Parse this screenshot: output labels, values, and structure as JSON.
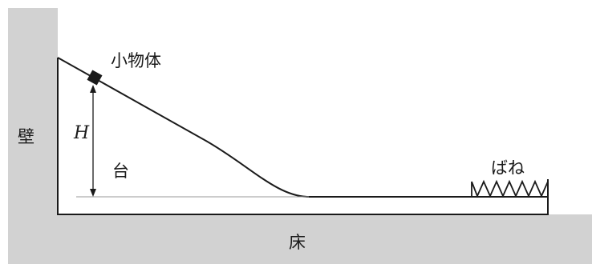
{
  "labels": {
    "small_object": "小物体",
    "wall": "壁",
    "height": "H",
    "stand": "台",
    "spring": "ばね",
    "floor": "床"
  },
  "colors": {
    "wall_floor_fill": "#d2d2d2",
    "line": "#1a1a1a",
    "baseline": "#9a9a9a"
  }
}
